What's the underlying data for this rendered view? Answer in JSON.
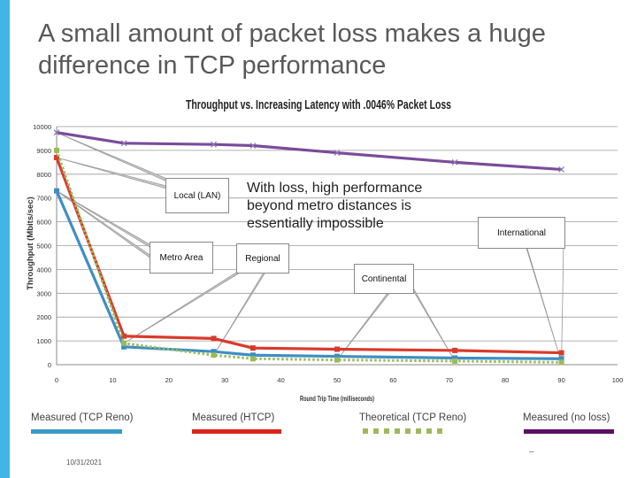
{
  "slide": {
    "title": "A small amount of packet loss makes a huge difference in TCP performance",
    "date": "10/31/2021",
    "footer_mark": "–",
    "accent_color": "#41b6e6"
  },
  "callouts": {
    "main_text": "With loss, high performance beyond metro distances is essentially impossible",
    "local": "Local (LAN)",
    "metro": "Metro Area",
    "regional": "Regional",
    "continental": "Continental",
    "international": "International"
  },
  "chart_data": {
    "type": "line",
    "title": "Throughput vs. Increasing Latency with .0046% Packet Loss",
    "xlabel": "Round Trip Time (milliseconds)",
    "ylabel": "Throughput (Mbits/sec)",
    "xlim": [
      0,
      100
    ],
    "ylim": [
      0,
      10000
    ],
    "x_ticks": [
      0,
      10,
      20,
      30,
      40,
      50,
      60,
      70,
      80,
      90,
      100
    ],
    "y_ticks": [
      0,
      1000,
      2000,
      3000,
      4000,
      5000,
      6000,
      7000,
      8000,
      9000,
      10000
    ],
    "grid": true,
    "legend_position": "bottom",
    "series": [
      {
        "name": "Measured (TCP Reno)",
        "color": "#3e8ec4",
        "style": "solid",
        "x": [
          0,
          12,
          28,
          35,
          50,
          71,
          90
        ],
        "y": [
          7300,
          750,
          550,
          400,
          350,
          280,
          250
        ]
      },
      {
        "name": "Measured (HTCP)",
        "color": "#d93a2b",
        "style": "solid",
        "x": [
          0,
          12,
          28,
          35,
          50,
          71,
          90
        ],
        "y": [
          8700,
          1200,
          1100,
          700,
          650,
          600,
          500
        ]
      },
      {
        "name": "Theoretical (TCP Reno)",
        "color": "#9bbb59",
        "style": "dotted",
        "x": [
          0,
          12,
          28,
          35,
          50,
          71,
          90
        ],
        "y": [
          9000,
          900,
          400,
          250,
          200,
          150,
          100
        ]
      },
      {
        "name": "Measured (no loss)",
        "color": "#7a4b9a",
        "style": "solid",
        "x": [
          0,
          12,
          28,
          35,
          50,
          71,
          90
        ],
        "y": [
          9750,
          9300,
          9250,
          9200,
          8900,
          8500,
          8200
        ]
      }
    ]
  }
}
